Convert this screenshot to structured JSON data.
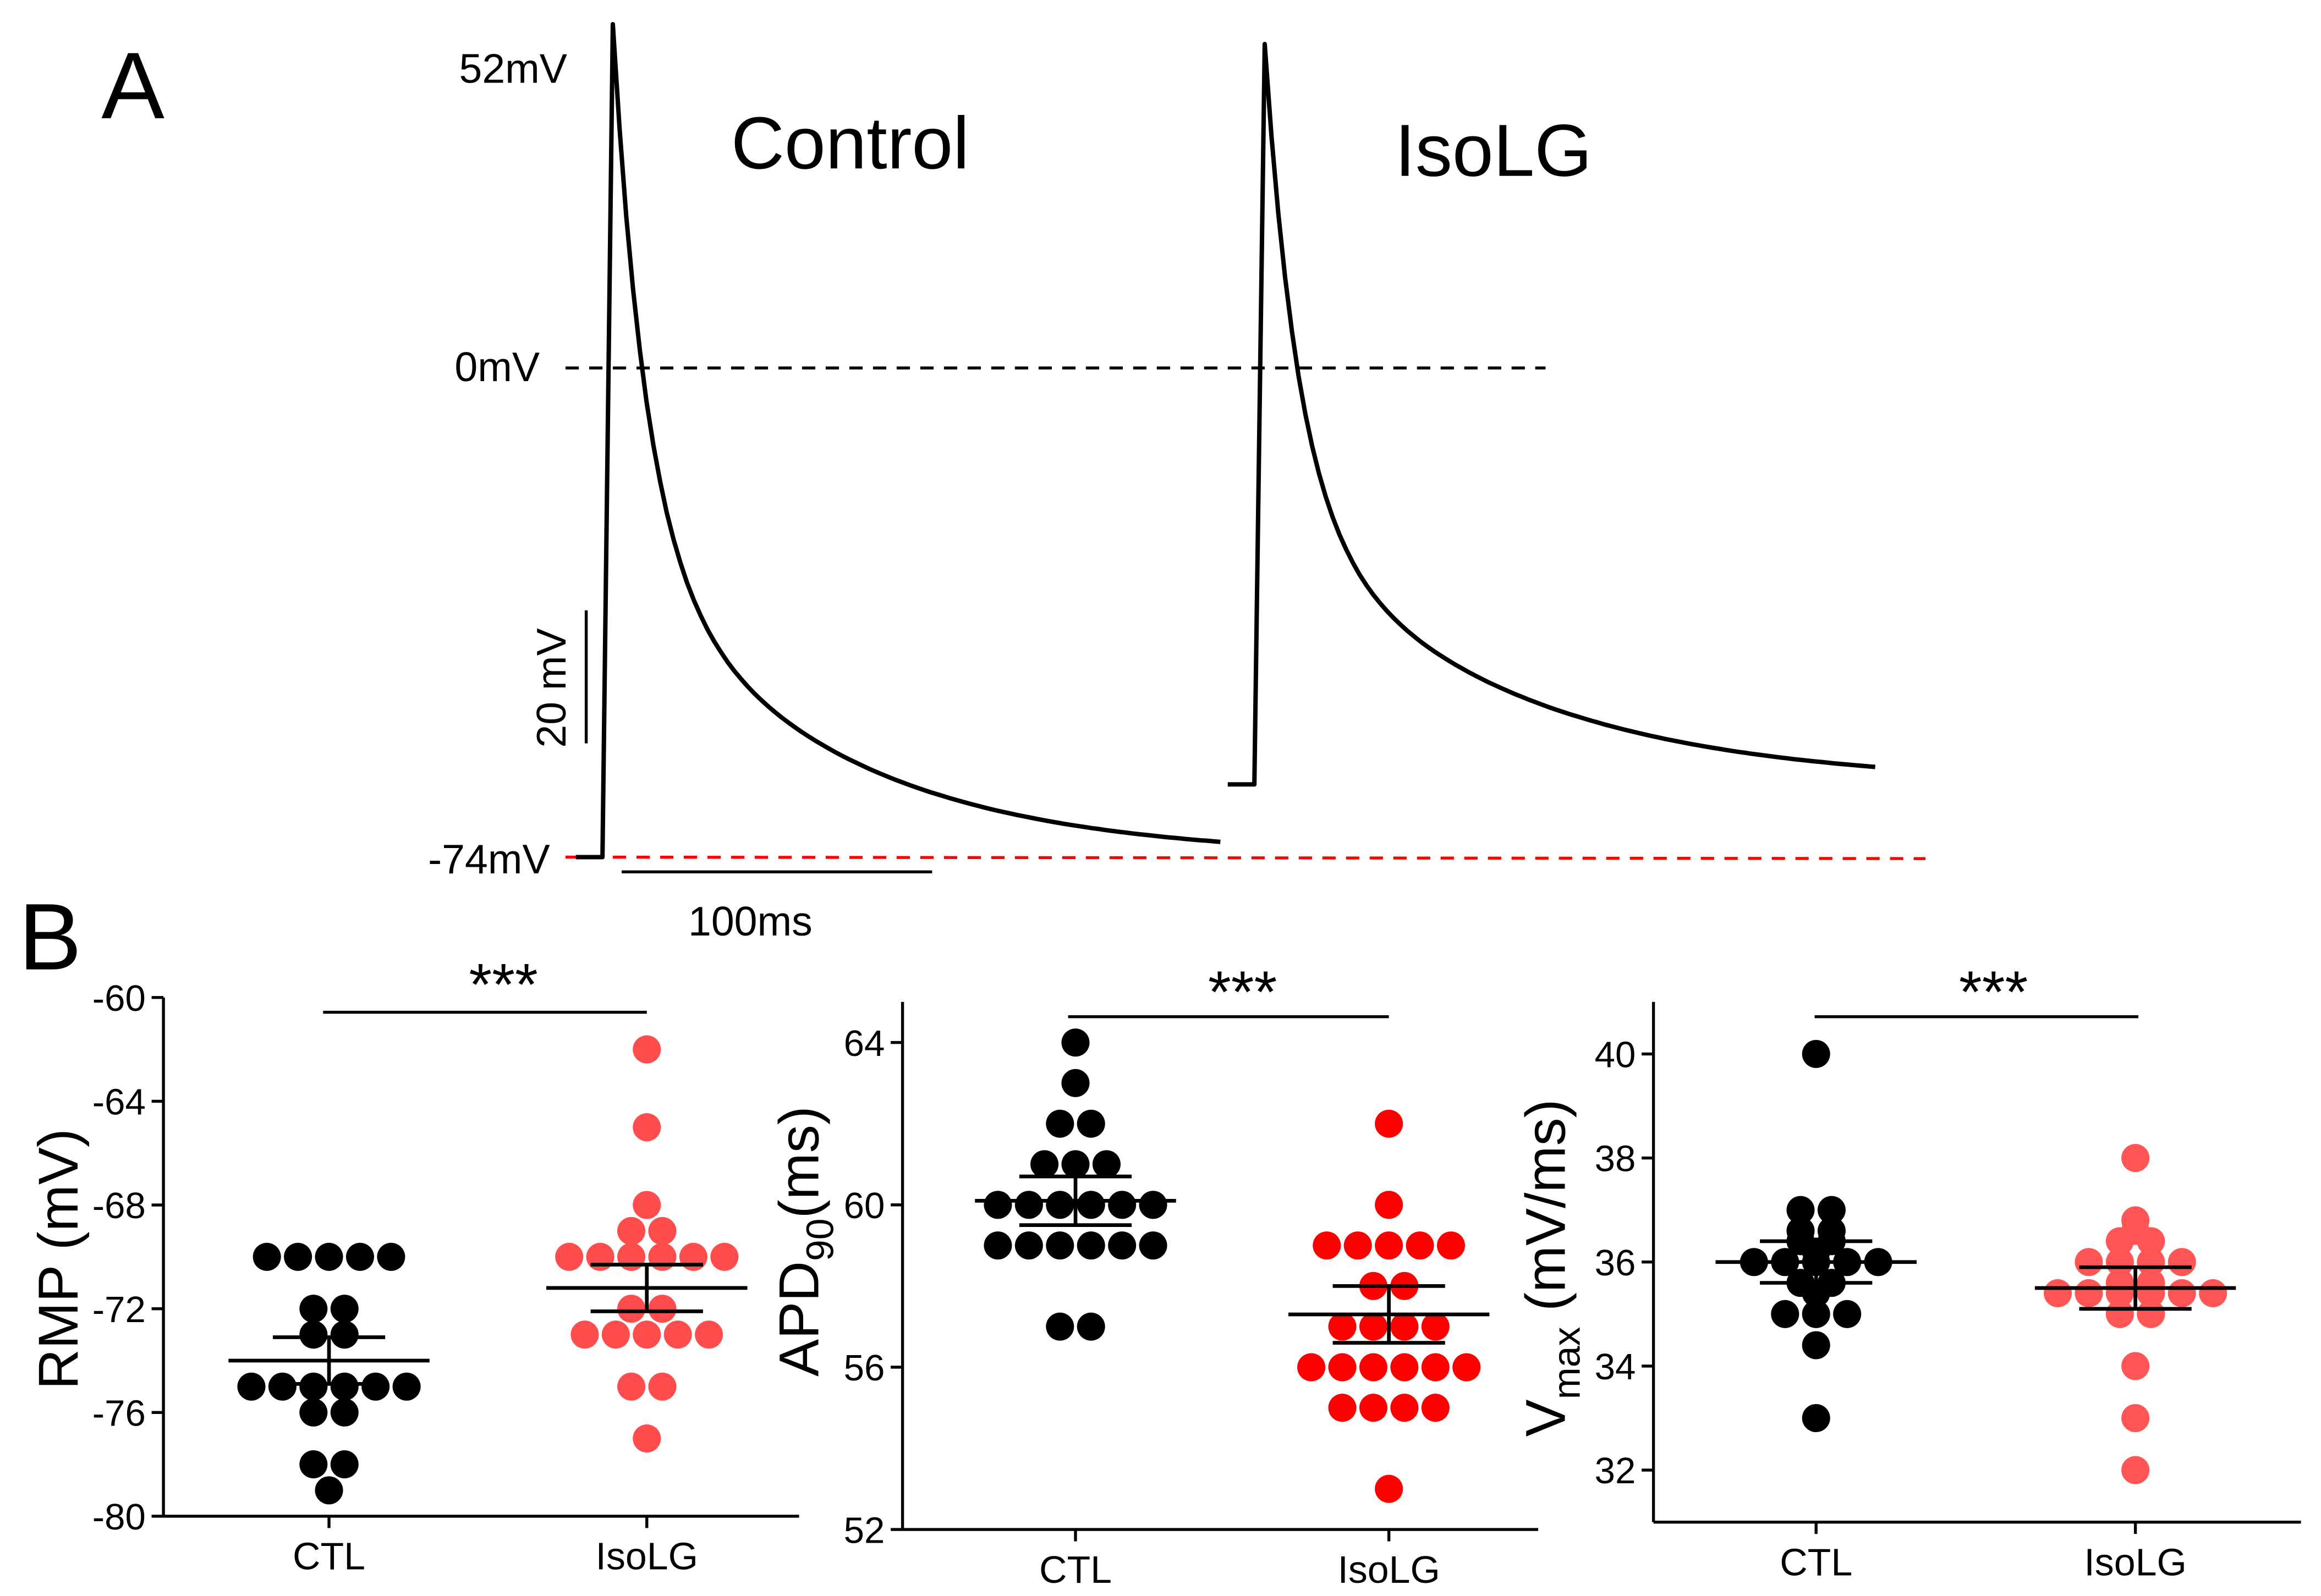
{
  "colors": {
    "ctl": "#000000",
    "isolg_rmp": "#ff4d4d",
    "isolg_apd": "#ff0000",
    "isolg_vmax": "#ff5555",
    "reference_line": "#ff0000"
  },
  "panel_a": {
    "label": "A",
    "traces": [
      {
        "name": "Control",
        "rest_mv": -74,
        "peak_mv": 52,
        "end_mv": -74
      },
      {
        "name": "IsoLG",
        "rest_mv": -63,
        "peak_mv": 49,
        "end_mv": -63
      }
    ],
    "voltage_labels": [
      {
        "text": "52mV",
        "mv": 52
      },
      {
        "text": "0mV",
        "mv": 0
      },
      {
        "text": "-74mV",
        "mv": -74
      }
    ],
    "scale_bar_v": {
      "label": "20 mV",
      "mv": 20
    },
    "scale_bar_t": {
      "label": "100ms",
      "ms": 100
    }
  },
  "panel_b": {
    "label": "B"
  },
  "chart_data": [
    {
      "type": "scatter",
      "title": "",
      "ylabel": "RMP (mV)",
      "ylim": [
        -80,
        -60
      ],
      "yticks": [
        -80,
        -76,
        -72,
        -68,
        -64,
        -60
      ],
      "categories": [
        "CTL",
        "IsoLG"
      ],
      "significance": "***",
      "series": [
        {
          "name": "CTL",
          "mean": -74.0,
          "sem": 0.9,
          "points": [
            -70,
            -70,
            -70,
            -70,
            -70,
            -72,
            -72,
            -73,
            -73,
            -75,
            -75,
            -75,
            -75,
            -75,
            -75,
            -76,
            -76,
            -78,
            -78,
            -79
          ]
        },
        {
          "name": "IsoLG",
          "mean": -71.2,
          "sem": 0.9,
          "points": [
            -62,
            -65,
            -68,
            -69,
            -69,
            -70,
            -70,
            -70,
            -70,
            -70,
            -70,
            -72,
            -72,
            -73,
            -73,
            -73,
            -73,
            -73,
            -75,
            -75,
            -77
          ]
        }
      ]
    },
    {
      "type": "scatter",
      "title": "",
      "ylabel": "APD90(ms)",
      "ylabel_main": "APD",
      "ylabel_sub": "90",
      "ylabel_tail": "(ms)",
      "ylim": [
        52,
        65
      ],
      "yticks": [
        52,
        56,
        60,
        64
      ],
      "categories": [
        "CTL",
        "IsoLG"
      ],
      "significance": "***",
      "series": [
        {
          "name": "CTL",
          "mean": 60.1,
          "sem": 0.6,
          "points": [
            64,
            63,
            62,
            62,
            61,
            61,
            61,
            60,
            60,
            60,
            60,
            60,
            60,
            59,
            59,
            59,
            59,
            59,
            59,
            57,
            57
          ]
        },
        {
          "name": "IsoLG",
          "mean": 57.3,
          "sem": 0.7,
          "points": [
            62,
            60,
            59,
            59,
            59,
            59,
            59,
            58,
            58,
            57,
            57,
            57,
            57,
            56,
            56,
            56,
            56,
            56,
            56,
            55,
            55,
            55,
            55,
            53
          ]
        }
      ]
    },
    {
      "type": "scatter",
      "title": "",
      "ylabel": "Vmax (mV/ms)",
      "ylabel_main": "V",
      "ylabel_sub": "max",
      "ylabel_tail": " (mV/ms)",
      "ylim": [
        31,
        41
      ],
      "yticks": [
        32,
        34,
        36,
        38,
        40
      ],
      "categories": [
        "CTL",
        "IsoLG"
      ],
      "significance": "***",
      "series": [
        {
          "name": "CTL",
          "mean": 36.0,
          "sem": 0.4,
          "points": [
            40,
            37,
            37,
            36.6,
            36.6,
            36.4,
            36.4,
            36.2,
            36,
            36,
            36,
            36,
            36,
            35.6,
            35.6,
            35.4,
            35,
            35,
            35,
            34.4,
            33
          ]
        },
        {
          "name": "IsoLG",
          "mean": 35.5,
          "sem": 0.4,
          "points": [
            38,
            36.8,
            36.6,
            36.4,
            36.4,
            36,
            36,
            36,
            36,
            35.6,
            35.6,
            35.4,
            35.4,
            35.4,
            35.4,
            35.4,
            35.4,
            35,
            35,
            34,
            33,
            32
          ]
        }
      ]
    }
  ]
}
